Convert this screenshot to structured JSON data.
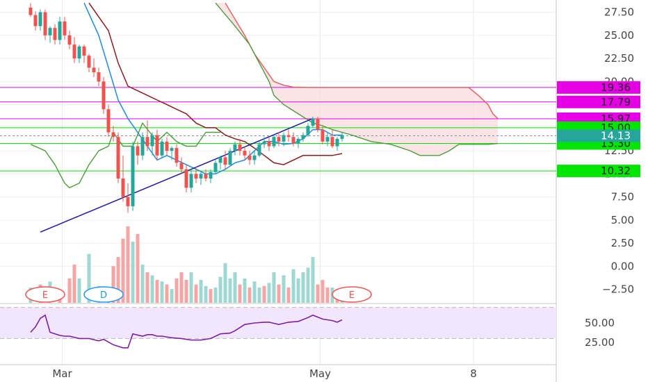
{
  "chart_data": {
    "type": "candlestick",
    "price_axis": {
      "ticks": [
        "27.50",
        "25.00",
        "22.50",
        "20.00",
        "17.50",
        "15.00",
        "12.50",
        "10.00",
        "7.50",
        "5.00",
        "2.50",
        "0.00",
        "−2.50"
      ],
      "range": [
        -4,
        28.5
      ]
    },
    "rsi_axis": {
      "ticks": [
        "50.00",
        "25.00"
      ],
      "band": [
        30,
        70
      ]
    },
    "time_axis": {
      "labels": [
        "Mar",
        "May",
        "8"
      ]
    },
    "last_price": {
      "value": 14.13,
      "label": "14.13",
      "color": "#26a69a"
    },
    "horizontal_levels": [
      {
        "value": 19.36,
        "label": "19.36",
        "color": "#e600e6"
      },
      {
        "value": 17.79,
        "label": "17.79",
        "color": "#e600e6"
      },
      {
        "value": 15.97,
        "label": "15.97",
        "color": "#e600e6"
      },
      {
        "value": 15.0,
        "label": "15.00",
        "color": "#00e600"
      },
      {
        "value": 13.3,
        "label": "13.30",
        "color": "#00e600"
      },
      {
        "value": 10.32,
        "label": "10.32",
        "color": "#00e600"
      }
    ],
    "trendline": {
      "from": [
        2,
        3.7
      ],
      "to": [
        58,
        16.0
      ],
      "color": "#1a1aa6"
    },
    "candles": [
      [
        0,
        28.0,
        28.5,
        27.0,
        27.2
      ],
      [
        1,
        27.2,
        27.6,
        25.5,
        26.0
      ],
      [
        2,
        26.0,
        27.8,
        25.5,
        27.5
      ],
      [
        3,
        27.5,
        27.8,
        24.5,
        25.0
      ],
      [
        4,
        25.0,
        26.0,
        24.2,
        25.8
      ],
      [
        5,
        25.8,
        26.2,
        24.0,
        24.5
      ],
      [
        6,
        24.5,
        27.0,
        24.0,
        26.5
      ],
      [
        7,
        26.5,
        27.0,
        24.5,
        25.0
      ],
      [
        8,
        25.0,
        25.5,
        23.5,
        24.0
      ],
      [
        9,
        24.0,
        24.8,
        22.0,
        22.5
      ],
      [
        10,
        22.5,
        24.0,
        22.0,
        23.8
      ],
      [
        11,
        23.8,
        24.0,
        22.0,
        22.8
      ],
      [
        12,
        22.8,
        23.0,
        21.0,
        21.5
      ],
      [
        13,
        21.5,
        22.5,
        20.5,
        21.0
      ],
      [
        14,
        21.0,
        21.5,
        19.5,
        20.0
      ],
      [
        15,
        20.0,
        20.5,
        16.5,
        17.0
      ],
      [
        16,
        17.0,
        17.5,
        14.0,
        14.5
      ],
      [
        17,
        14.5,
        15.2,
        13.5,
        14.0
      ],
      [
        18,
        14.0,
        14.5,
        9.0,
        9.5
      ],
      [
        19,
        9.5,
        12.0,
        7.0,
        7.5
      ],
      [
        20,
        7.5,
        9.0,
        5.8,
        6.5
      ],
      [
        21,
        6.5,
        13.5,
        6.0,
        13.0
      ],
      [
        22,
        13.0,
        13.5,
        11.0,
        12.0
      ],
      [
        23,
        12.0,
        14.5,
        11.5,
        14.0
      ],
      [
        24,
        14.0,
        15.8,
        12.5,
        13.0
      ],
      [
        25,
        13.0,
        14.5,
        12.0,
        14.2
      ],
      [
        26,
        14.2,
        14.8,
        11.5,
        12.0
      ],
      [
        27,
        12.0,
        13.8,
        11.8,
        13.5
      ],
      [
        28,
        13.5,
        14.0,
        12.0,
        12.5
      ],
      [
        29,
        12.5,
        13.0,
        11.5,
        12.8
      ],
      [
        30,
        12.8,
        13.2,
        10.8,
        11.2
      ],
      [
        31,
        11.2,
        11.8,
        10.0,
        10.5
      ],
      [
        32,
        10.5,
        11.0,
        8.0,
        8.5
      ],
      [
        33,
        8.5,
        10.5,
        8.0,
        10.0
      ],
      [
        34,
        10.0,
        10.8,
        9.0,
        9.5
      ],
      [
        35,
        9.5,
        10.2,
        8.8,
        10.0
      ],
      [
        36,
        10.0,
        10.5,
        9.2,
        9.5
      ],
      [
        37,
        9.5,
        10.5,
        9.0,
        10.2
      ],
      [
        38,
        10.2,
        11.5,
        10.0,
        11.2
      ],
      [
        39,
        11.2,
        12.0,
        10.5,
        11.8
      ],
      [
        40,
        11.8,
        12.5,
        10.5,
        11.0
      ],
      [
        41,
        11.0,
        12.8,
        10.8,
        12.5
      ],
      [
        42,
        12.5,
        13.5,
        12.0,
        13.2
      ],
      [
        43,
        13.2,
        13.8,
        12.0,
        12.5
      ],
      [
        44,
        12.5,
        13.0,
        11.5,
        12.0
      ],
      [
        45,
        12.0,
        12.5,
        11.0,
        11.5
      ],
      [
        46,
        11.5,
        12.5,
        11.0,
        12.0
      ],
      [
        47,
        12.0,
        13.5,
        11.8,
        13.2
      ],
      [
        48,
        13.2,
        14.0,
        12.8,
        13.5
      ],
      [
        49,
        13.5,
        14.0,
        12.5,
        13.0
      ],
      [
        50,
        13.0,
        14.2,
        12.8,
        14.0
      ],
      [
        51,
        14.0,
        14.5,
        13.0,
        13.5
      ],
      [
        52,
        13.5,
        14.5,
        13.0,
        14.2
      ],
      [
        53,
        14.2,
        14.8,
        13.5,
        14.0
      ],
      [
        54,
        14.0,
        14.5,
        13.0,
        13.3
      ],
      [
        55,
        13.3,
        14.0,
        12.8,
        13.8
      ],
      [
        56,
        13.8,
        14.5,
        13.5,
        14.2
      ],
      [
        57,
        14.2,
        15.5,
        14.0,
        15.2
      ],
      [
        58,
        15.2,
        16.2,
        15.0,
        16.0
      ],
      [
        59,
        16.0,
        16.2,
        14.5,
        14.8
      ],
      [
        60,
        14.8,
        15.2,
        13.2,
        13.5
      ],
      [
        61,
        13.5,
        14.5,
        13.0,
        14.0
      ],
      [
        62,
        14.0,
        14.8,
        12.8,
        13.0
      ],
      [
        63,
        13.0,
        14.0,
        12.5,
        13.8
      ],
      [
        64,
        13.8,
        14.5,
        13.5,
        14.2
      ]
    ],
    "indicator_lines": {
      "blue": [
        [
          11,
          28.5
        ],
        [
          14,
          25
        ],
        [
          16,
          21.5
        ],
        [
          18,
          18
        ],
        [
          20,
          16
        ],
        [
          22,
          14.5
        ],
        [
          24,
          13
        ],
        [
          26,
          11.5
        ],
        [
          28,
          12
        ],
        [
          30,
          11.5
        ],
        [
          32,
          11
        ],
        [
          34,
          10.5
        ],
        [
          36,
          10
        ],
        [
          38,
          10
        ],
        [
          40,
          10.5
        ],
        [
          42,
          11.2
        ],
        [
          44,
          11.5
        ],
        [
          46,
          12.5
        ],
        [
          48,
          13.5
        ],
        [
          50,
          13.5
        ],
        [
          52,
          13.2
        ],
        [
          54,
          13.3
        ],
        [
          56,
          13.8
        ],
        [
          58,
          14.8
        ],
        [
          60,
          14.8
        ],
        [
          62,
          14.2
        ],
        [
          64,
          14.2
        ]
      ],
      "maroon": [
        [
          12,
          28.5
        ],
        [
          16,
          25.5
        ],
        [
          18,
          22
        ],
        [
          20,
          19.5
        ],
        [
          22,
          19
        ],
        [
          24,
          18.5
        ],
        [
          26,
          18
        ],
        [
          28,
          17.5
        ],
        [
          30,
          17
        ],
        [
          32,
          16.5
        ],
        [
          34,
          15.5
        ],
        [
          36,
          15
        ],
        [
          38,
          15
        ],
        [
          40,
          14.2
        ],
        [
          42,
          13.8
        ],
        [
          44,
          13.5
        ],
        [
          46,
          12.8
        ],
        [
          48,
          12
        ],
        [
          50,
          11.2
        ],
        [
          52,
          11
        ],
        [
          54,
          11.5
        ],
        [
          56,
          12
        ],
        [
          58,
          12
        ],
        [
          60,
          12
        ],
        [
          62,
          12
        ],
        [
          64,
          12.2
        ]
      ],
      "green_lag": [
        [
          0,
          13.2
        ],
        [
          3,
          12.5
        ],
        [
          5,
          11
        ],
        [
          7,
          9
        ],
        [
          8,
          8.5
        ],
        [
          10,
          9
        ],
        [
          12,
          11
        ],
        [
          14,
          12.5
        ],
        [
          16,
          13
        ],
        [
          17,
          14.5
        ],
        [
          19,
          13
        ],
        [
          21,
          13
        ],
        [
          23,
          15.5
        ],
        [
          26,
          13.5
        ],
        [
          28,
          14.5
        ],
        [
          30,
          13.5
        ],
        [
          32,
          13
        ],
        [
          34,
          13
        ],
        [
          36,
          14.5
        ],
        [
          39,
          14.5
        ]
      ],
      "span_a": [
        [
          38,
          28.5
        ],
        [
          42,
          26
        ],
        [
          45,
          24
        ],
        [
          47,
          22
        ],
        [
          49,
          20
        ],
        [
          50,
          18.5
        ],
        [
          52,
          17.5
        ],
        [
          55,
          16.5
        ],
        [
          58,
          15.5
        ],
        [
          60,
          15.2
        ],
        [
          62,
          14.8
        ],
        [
          66,
          14.2
        ],
        [
          70,
          13.5
        ],
        [
          74,
          13.2
        ],
        [
          78,
          12.5
        ],
        [
          80,
          12.0
        ],
        [
          84,
          12.0
        ],
        [
          86,
          12.5
        ],
        [
          88,
          13.2
        ],
        [
          94,
          13.2
        ],
        [
          96,
          13.3
        ]
      ],
      "span_b": [
        [
          40,
          28.5
        ],
        [
          44,
          25
        ],
        [
          46,
          23
        ],
        [
          48,
          21.5
        ],
        [
          50,
          20.0
        ],
        [
          52,
          19.6
        ],
        [
          54,
          19.4
        ],
        [
          58,
          19.36
        ],
        [
          66,
          19.36
        ],
        [
          74,
          19.36
        ],
        [
          82,
          19.36
        ],
        [
          90,
          19.36
        ],
        [
          92,
          18.5
        ],
        [
          94,
          17.5
        ],
        [
          95,
          16.5
        ],
        [
          96,
          16.0
        ]
      ]
    },
    "volume": [
      [
        0,
        1.0,
        "up"
      ],
      [
        2,
        1.2,
        "down"
      ],
      [
        4,
        1.4,
        "up"
      ],
      [
        6,
        0.8,
        "down"
      ],
      [
        8,
        1.6,
        "down"
      ],
      [
        9,
        2.5,
        "down"
      ],
      [
        10,
        1.6,
        "up"
      ],
      [
        12,
        3.2,
        "up"
      ],
      [
        14,
        1.1,
        "up"
      ],
      [
        16,
        1.0,
        "down"
      ],
      [
        17,
        2.4,
        "down"
      ],
      [
        18,
        3.0,
        "down"
      ],
      [
        19,
        4.2,
        "down"
      ],
      [
        20,
        5.0,
        "down"
      ],
      [
        21,
        4.0,
        "up"
      ],
      [
        22,
        4.5,
        "down"
      ],
      [
        23,
        2.5,
        "up"
      ],
      [
        24,
        2.0,
        "down"
      ],
      [
        25,
        1.8,
        "up"
      ],
      [
        26,
        1.5,
        "down"
      ],
      [
        27,
        1.4,
        "up"
      ],
      [
        28,
        1.2,
        "down"
      ],
      [
        29,
        0.9,
        "up"
      ],
      [
        30,
        1.6,
        "down"
      ],
      [
        31,
        2.0,
        "down"
      ],
      [
        32,
        1.5,
        "down"
      ],
      [
        33,
        2.0,
        "up"
      ],
      [
        34,
        1.2,
        "down"
      ],
      [
        35,
        1.5,
        "up"
      ],
      [
        36,
        1.1,
        "up"
      ],
      [
        37,
        0.9,
        "down"
      ],
      [
        38,
        1.0,
        "up"
      ],
      [
        39,
        1.7,
        "up"
      ],
      [
        40,
        2.6,
        "up"
      ],
      [
        41,
        1.6,
        "up"
      ],
      [
        42,
        2.0,
        "up"
      ],
      [
        43,
        1.2,
        "down"
      ],
      [
        44,
        1.6,
        "up"
      ],
      [
        45,
        1.0,
        "down"
      ],
      [
        46,
        1.4,
        "up"
      ],
      [
        47,
        1.0,
        "up"
      ],
      [
        48,
        1.1,
        "down"
      ],
      [
        49,
        1.3,
        "up"
      ],
      [
        50,
        2.0,
        "up"
      ],
      [
        51,
        1.2,
        "down"
      ],
      [
        52,
        1.8,
        "up"
      ],
      [
        53,
        1.0,
        "down"
      ],
      [
        54,
        2.2,
        "up"
      ],
      [
        55,
        1.6,
        "up"
      ],
      [
        56,
        2.0,
        "up"
      ],
      [
        57,
        2.3,
        "up"
      ],
      [
        58,
        3.0,
        "up"
      ],
      [
        59,
        1.2,
        "down"
      ],
      [
        60,
        1.5,
        "down"
      ],
      [
        61,
        1.0,
        "down"
      ],
      [
        62,
        1.0,
        "up"
      ],
      [
        63,
        0.9,
        "down"
      ],
      [
        64,
        0.9,
        "up"
      ]
    ],
    "rsi": [
      [
        0,
        38
      ],
      [
        1,
        45
      ],
      [
        2,
        56
      ],
      [
        3,
        60
      ],
      [
        4,
        38
      ],
      [
        6,
        34
      ],
      [
        7,
        33
      ],
      [
        8,
        33
      ],
      [
        10,
        30
      ],
      [
        12,
        30
      ],
      [
        14,
        27
      ],
      [
        15,
        29
      ],
      [
        17,
        22
      ],
      [
        18,
        20
      ],
      [
        19,
        18
      ],
      [
        20,
        18
      ],
      [
        21,
        36
      ],
      [
        23,
        33
      ],
      [
        24,
        35
      ],
      [
        25,
        35
      ],
      [
        26,
        33
      ],
      [
        27,
        33
      ],
      [
        29,
        31
      ],
      [
        31,
        30
      ],
      [
        33,
        28
      ],
      [
        35,
        28
      ],
      [
        37,
        30
      ],
      [
        39,
        36
      ],
      [
        41,
        37
      ],
      [
        42,
        40
      ],
      [
        44,
        48
      ],
      [
        46,
        50
      ],
      [
        48,
        51
      ],
      [
        49,
        51
      ],
      [
        51,
        48
      ],
      [
        53,
        51
      ],
      [
        55,
        52
      ],
      [
        57,
        57
      ],
      [
        58,
        60
      ],
      [
        60,
        55
      ],
      [
        62,
        53
      ],
      [
        63,
        51
      ],
      [
        64,
        54
      ]
    ],
    "events": [
      {
        "x": 3,
        "label": "E",
        "style": "earnings"
      },
      {
        "x": 15,
        "label": "D",
        "style": "dividend"
      },
      {
        "x": 66,
        "label": "E",
        "style": "earnings"
      }
    ]
  }
}
